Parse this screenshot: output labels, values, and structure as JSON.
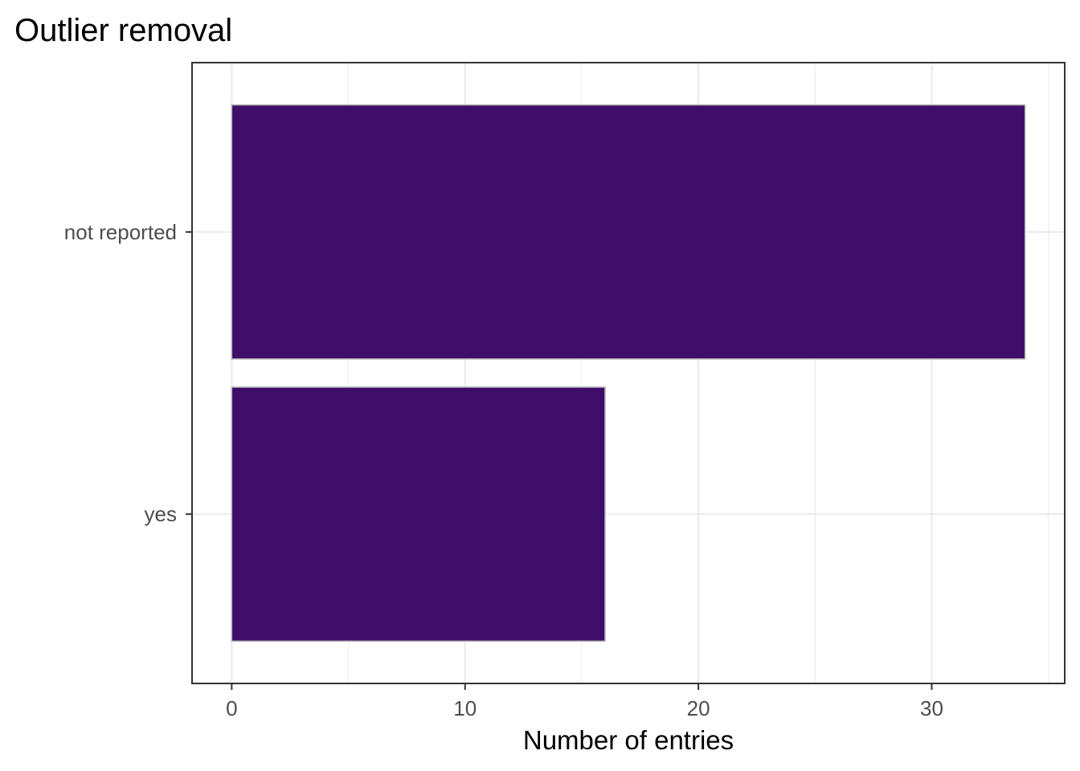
{
  "chart_data": {
    "type": "bar",
    "orientation": "horizontal",
    "title": "Outlier removal",
    "xlabel": "Number of entries",
    "ylabel": "",
    "categories": [
      "not reported",
      "yes"
    ],
    "values": [
      34,
      16
    ],
    "xlim": [
      -1.7,
      35.7
    ],
    "xticks": [
      0,
      10,
      20,
      30
    ],
    "grid": true,
    "bar_color": "#3f0d6a",
    "bar_outline_color": "#b3b3b3",
    "panel_border_color": "#333333",
    "grid_color": "#ebebeb"
  }
}
